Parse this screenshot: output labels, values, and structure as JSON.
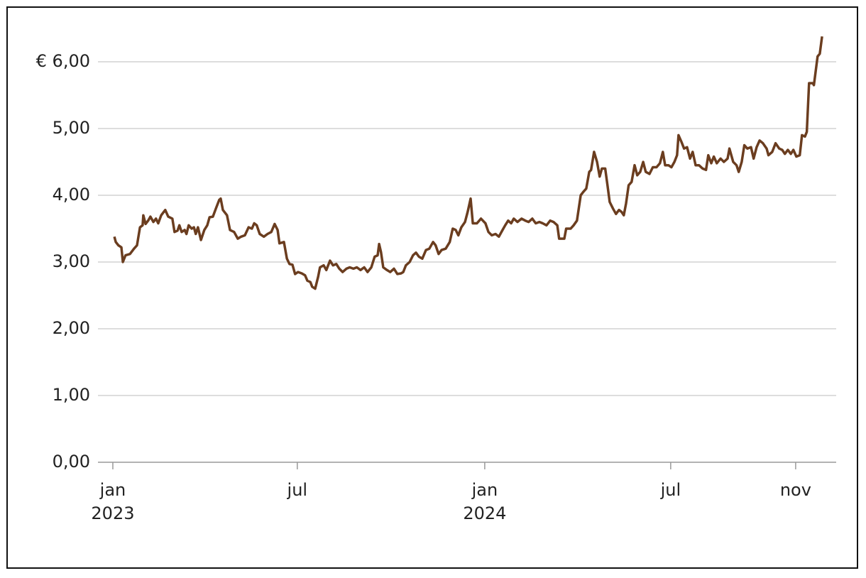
{
  "chart_data": {
    "type": "line",
    "x": [
      2023.004,
      2023.008,
      2023.015,
      2023.023,
      2023.027,
      2023.034,
      2023.046,
      2023.057,
      2023.065,
      2023.073,
      2023.08,
      2023.082,
      2023.088,
      2023.095,
      2023.101,
      2023.109,
      2023.116,
      2023.122,
      2023.13,
      2023.141,
      2023.149,
      2023.16,
      2023.166,
      2023.174,
      2023.179,
      2023.185,
      2023.193,
      2023.198,
      2023.204,
      2023.212,
      2023.218,
      2023.223,
      2023.229,
      2023.237,
      2023.246,
      2023.254,
      2023.26,
      2023.269,
      2023.277,
      2023.286,
      2023.29,
      2023.296,
      2023.307,
      2023.315,
      2023.326,
      2023.336,
      2023.345,
      2023.355,
      2023.365,
      2023.374,
      2023.38,
      2023.387,
      2023.395,
      2023.406,
      2023.416,
      2023.426,
      2023.435,
      2023.443,
      2023.448,
      2023.46,
      2023.468,
      2023.475,
      2023.483,
      2023.49,
      2023.498,
      2023.508,
      2023.517,
      2023.523,
      2023.531,
      2023.536,
      2023.544,
      2023.552,
      2023.557,
      2023.567,
      2023.574,
      2023.584,
      2023.592,
      2023.601,
      2023.609,
      2023.618,
      2023.628,
      2023.637,
      2023.647,
      2023.656,
      2023.666,
      2023.676,
      2023.685,
      2023.695,
      2023.704,
      2023.712,
      2023.716,
      2023.721,
      2023.727,
      2023.737,
      2023.746,
      2023.756,
      2023.765,
      2023.775,
      2023.781,
      2023.788,
      2023.798,
      2023.807,
      2023.815,
      2023.823,
      2023.832,
      2023.842,
      2023.851,
      2023.861,
      2023.868,
      2023.876,
      2023.884,
      2023.895,
      2023.906,
      2023.914,
      2023.922,
      2023.929,
      2023.937,
      2023.947,
      2023.954,
      2023.962,
      2023.968,
      2023.979,
      2023.99,
      2024.002,
      2024.01,
      2024.019,
      2024.029,
      2024.038,
      2024.048,
      2024.055,
      2024.063,
      2024.071,
      2024.078,
      2024.088,
      2024.099,
      2024.109,
      2024.118,
      2024.128,
      2024.137,
      2024.147,
      2024.156,
      2024.166,
      2024.176,
      2024.185,
      2024.195,
      2024.2,
      2024.214,
      2024.219,
      2024.231,
      2024.239,
      2024.248,
      2024.258,
      2024.265,
      2024.273,
      2024.281,
      2024.286,
      2024.294,
      2024.302,
      2024.309,
      2024.315,
      2024.324,
      2024.33,
      2024.336,
      2024.345,
      2024.353,
      2024.361,
      2024.368,
      2024.374,
      2024.38,
      2024.387,
      2024.395,
      2024.403,
      2024.41,
      2024.418,
      2024.426,
      2024.433,
      2024.443,
      2024.452,
      2024.462,
      2024.471,
      2024.479,
      2024.485,
      2024.494,
      2024.502,
      2024.51,
      2024.517,
      2024.521,
      2024.529,
      2024.536,
      2024.544,
      2024.552,
      2024.559,
      2024.567,
      2024.576,
      2024.586,
      2024.595,
      2024.601,
      2024.609,
      2024.616,
      2024.624,
      2024.634,
      2024.643,
      2024.653,
      2024.658,
      2024.668,
      2024.677,
      2024.683,
      2024.691,
      2024.698,
      2024.706,
      2024.716,
      2024.723,
      2024.731,
      2024.739,
      2024.748,
      2024.758,
      2024.763,
      2024.773,
      2024.782,
      2024.792,
      2024.8,
      2024.807,
      2024.815,
      2024.823,
      2024.83,
      2024.838,
      2024.847,
      2024.853,
      2024.861,
      2024.866,
      2024.872,
      2024.882,
      2024.885,
      2024.895,
      2024.901,
      2024.907
    ],
    "values": [
      3.38,
      3.3,
      3.25,
      3.22,
      3.0,
      3.1,
      3.12,
      3.2,
      3.25,
      3.52,
      3.55,
      3.7,
      3.57,
      3.62,
      3.68,
      3.6,
      3.65,
      3.58,
      3.7,
      3.78,
      3.68,
      3.65,
      3.45,
      3.47,
      3.55,
      3.45,
      3.48,
      3.42,
      3.55,
      3.5,
      3.52,
      3.42,
      3.52,
      3.33,
      3.48,
      3.55,
      3.67,
      3.68,
      3.8,
      3.93,
      3.95,
      3.78,
      3.7,
      3.48,
      3.45,
      3.35,
      3.38,
      3.4,
      3.52,
      3.5,
      3.58,
      3.55,
      3.42,
      3.38,
      3.42,
      3.45,
      3.57,
      3.48,
      3.28,
      3.3,
      3.05,
      2.97,
      2.96,
      2.82,
      2.85,
      2.83,
      2.8,
      2.72,
      2.7,
      2.63,
      2.6,
      2.78,
      2.92,
      2.95,
      2.88,
      3.02,
      2.95,
      2.97,
      2.9,
      2.85,
      2.9,
      2.92,
      2.9,
      2.92,
      2.88,
      2.92,
      2.85,
      2.92,
      3.08,
      3.1,
      3.27,
      3.15,
      2.92,
      2.88,
      2.85,
      2.9,
      2.82,
      2.83,
      2.85,
      2.95,
      3.0,
      3.1,
      3.14,
      3.08,
      3.05,
      3.18,
      3.2,
      3.3,
      3.25,
      3.12,
      3.18,
      3.2,
      3.3,
      3.5,
      3.48,
      3.4,
      3.52,
      3.6,
      3.75,
      3.95,
      3.58,
      3.58,
      3.65,
      3.58,
      3.45,
      3.4,
      3.42,
      3.38,
      3.48,
      3.55,
      3.62,
      3.58,
      3.65,
      3.6,
      3.65,
      3.62,
      3.6,
      3.65,
      3.58,
      3.6,
      3.58,
      3.55,
      3.62,
      3.6,
      3.55,
      3.35,
      3.35,
      3.5,
      3.5,
      3.55,
      3.62,
      4.0,
      4.05,
      4.1,
      4.35,
      4.38,
      4.65,
      4.5,
      4.28,
      4.4,
      4.4,
      4.15,
      3.9,
      3.8,
      3.72,
      3.78,
      3.75,
      3.7,
      3.88,
      4.15,
      4.2,
      4.45,
      4.3,
      4.35,
      4.5,
      4.35,
      4.32,
      4.42,
      4.42,
      4.48,
      4.65,
      4.45,
      4.45,
      4.42,
      4.5,
      4.6,
      4.9,
      4.8,
      4.7,
      4.72,
      4.55,
      4.65,
      4.45,
      4.45,
      4.4,
      4.38,
      4.6,
      4.48,
      4.58,
      4.48,
      4.55,
      4.5,
      4.55,
      4.7,
      4.5,
      4.45,
      4.35,
      4.5,
      4.75,
      4.7,
      4.72,
      4.55,
      4.72,
      4.82,
      4.78,
      4.7,
      4.6,
      4.65,
      4.78,
      4.7,
      4.68,
      4.62,
      4.68,
      4.62,
      4.68,
      4.58,
      4.6,
      4.9,
      4.88,
      4.95,
      5.68,
      5.68,
      5.65,
      6.08,
      6.12,
      6.38
    ],
    "color": "#6b3d1f",
    "xlim": [
      2022.96,
      2024.945
    ],
    "xticks": [
      {
        "value": 2023.0,
        "label": "jan 2023"
      },
      {
        "value": 2023.496,
        "label": "jul"
      },
      {
        "value": 2024.0,
        "label": "jan 2024"
      },
      {
        "value": 2024.5,
        "label": "jul"
      },
      {
        "value": 2024.836,
        "label": "nov"
      }
    ],
    "ylim": [
      0,
      6.5
    ],
    "yticks": [
      {
        "value": 0,
        "label": "0,00"
      },
      {
        "value": 1,
        "label": "1,00"
      },
      {
        "value": 2,
        "label": "2,00"
      },
      {
        "value": 3,
        "label": "3,00"
      },
      {
        "value": 4,
        "label": "4,00"
      },
      {
        "value": 5,
        "label": "5,00"
      },
      {
        "value": 6,
        "label": "€ 6,00"
      }
    ],
    "grid": true
  }
}
